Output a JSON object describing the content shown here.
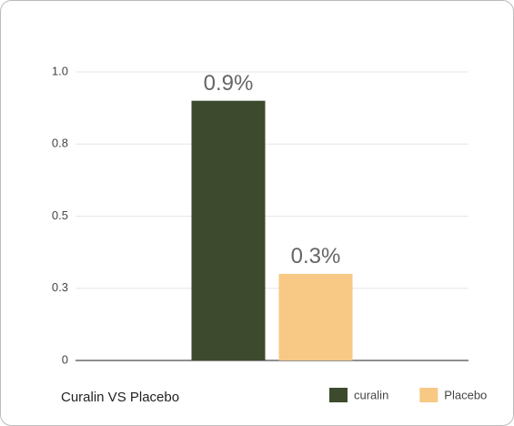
{
  "chart_data": {
    "type": "bar",
    "title": "Curalin VS Placebo",
    "categories": [
      null
    ],
    "series": [
      {
        "name": "curalin",
        "color": "#3d4a2e",
        "values": [
          0.9
        ],
        "value_labels": [
          "0.9%"
        ]
      },
      {
        "name": "Placebo",
        "color": "#f7c984",
        "values": [
          0.3
        ],
        "value_labels": [
          "0.3%"
        ]
      }
    ],
    "ylim": [
      0,
      1
    ],
    "yticks": [
      0,
      {
        "value": 0.25,
        "label": "0.3"
      },
      0.5,
      {
        "value": 0.75,
        "label": "0.8"
      },
      {
        "value": 1,
        "label": "1.0"
      }
    ],
    "grid": true,
    "legend": "bottom-right"
  }
}
